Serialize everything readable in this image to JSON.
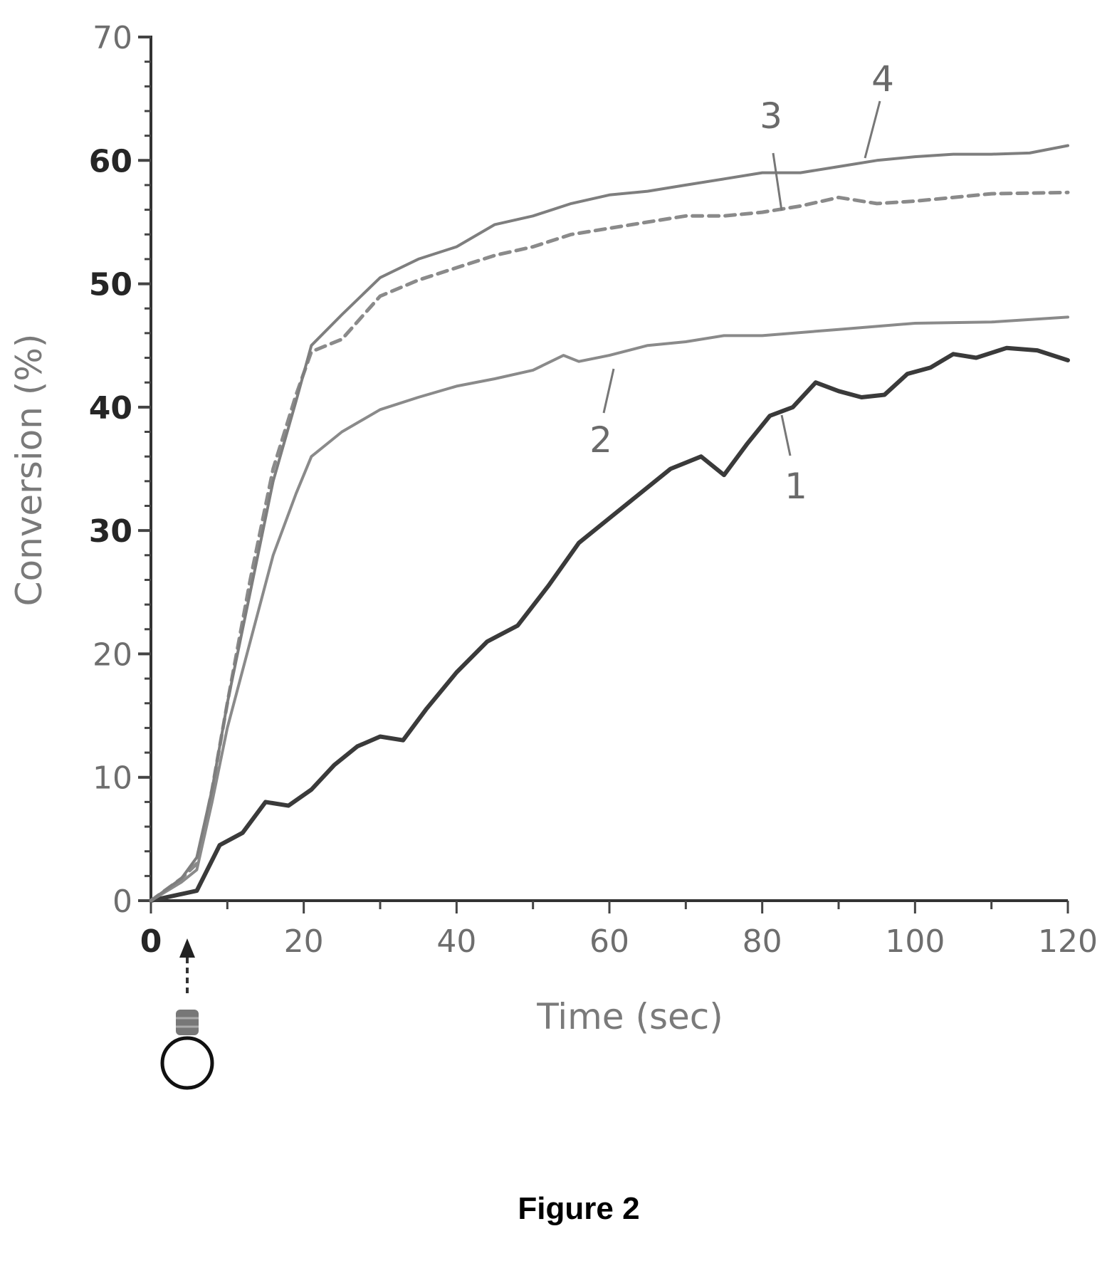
{
  "figure_caption": "Figure 2",
  "chart_data": {
    "type": "line",
    "title": "",
    "xlabel": "Time (sec)",
    "ylabel": "Conversion (%)",
    "xlim": [
      0,
      120
    ],
    "ylim": [
      0,
      70
    ],
    "x_ticks": [
      "0",
      "20",
      "40",
      "60",
      "80",
      "100",
      "120"
    ],
    "y_ticks": [
      "0",
      "10",
      "20",
      "30",
      "40",
      "50",
      "60",
      "70"
    ],
    "grid": false,
    "legend": "none (curves labeled directly 1–4)",
    "annotation": "light-source icon with arrow marking exposure start near t = 5 s",
    "series": [
      {
        "name": "1",
        "style": "solid-thick-dark",
        "color": "#3a3a3a",
        "points": [
          [
            0,
            0
          ],
          [
            6,
            0.8
          ],
          [
            9,
            4.5
          ],
          [
            12,
            5.5
          ],
          [
            15,
            8
          ],
          [
            18,
            7.7
          ],
          [
            21,
            9
          ],
          [
            24,
            11
          ],
          [
            27,
            12.5
          ],
          [
            30,
            13.3
          ],
          [
            33,
            13
          ],
          [
            36,
            15.5
          ],
          [
            40,
            18.5
          ],
          [
            44,
            21
          ],
          [
            48,
            22.3
          ],
          [
            52,
            25.5
          ],
          [
            56,
            29
          ],
          [
            60,
            31
          ],
          [
            64,
            33
          ],
          [
            68,
            35
          ],
          [
            72,
            36
          ],
          [
            75,
            34.5
          ],
          [
            78,
            37
          ],
          [
            81,
            39.3
          ],
          [
            84,
            40
          ],
          [
            87,
            42
          ],
          [
            90,
            41.3
          ],
          [
            93,
            40.8
          ],
          [
            96,
            41
          ],
          [
            99,
            42.7
          ],
          [
            102,
            43.2
          ],
          [
            105,
            44.3
          ],
          [
            108,
            44
          ],
          [
            112,
            44.8
          ],
          [
            116,
            44.6
          ],
          [
            120,
            43.8
          ]
        ]
      },
      {
        "name": "2",
        "style": "solid-gray",
        "color": "#8a8a8a",
        "points": [
          [
            0,
            0
          ],
          [
            4,
            1.5
          ],
          [
            6,
            2.5
          ],
          [
            8,
            8
          ],
          [
            10,
            14
          ],
          [
            13,
            21
          ],
          [
            16,
            28
          ],
          [
            19,
            33
          ],
          [
            21,
            36
          ],
          [
            25,
            38
          ],
          [
            30,
            39.8
          ],
          [
            35,
            40.8
          ],
          [
            40,
            41.7
          ],
          [
            45,
            42.3
          ],
          [
            50,
            43
          ],
          [
            54,
            44.2
          ],
          [
            56,
            43.7
          ],
          [
            60,
            44.2
          ],
          [
            65,
            45
          ],
          [
            70,
            45.3
          ],
          [
            75,
            45.8
          ],
          [
            80,
            45.8
          ],
          [
            90,
            46.3
          ],
          [
            100,
            46.8
          ],
          [
            110,
            46.9
          ],
          [
            120,
            47.3
          ]
        ]
      },
      {
        "name": "3",
        "style": "dashed-gray",
        "color": "#8a8a8a",
        "points": [
          [
            0,
            0
          ],
          [
            4,
            1.8
          ],
          [
            6,
            3
          ],
          [
            8,
            9
          ],
          [
            10,
            16
          ],
          [
            13,
            26
          ],
          [
            16,
            35
          ],
          [
            19,
            41
          ],
          [
            21,
            44.5
          ],
          [
            25,
            45.5
          ],
          [
            30,
            49
          ],
          [
            35,
            50.3
          ],
          [
            40,
            51.3
          ],
          [
            45,
            52.3
          ],
          [
            50,
            53
          ],
          [
            55,
            54
          ],
          [
            60,
            54.5
          ],
          [
            65,
            55
          ],
          [
            70,
            55.5
          ],
          [
            75,
            55.5
          ],
          [
            80,
            55.8
          ],
          [
            85,
            56.3
          ],
          [
            90,
            57
          ],
          [
            95,
            56.5
          ],
          [
            100,
            56.7
          ],
          [
            110,
            57.3
          ],
          [
            120,
            57.4
          ]
        ]
      },
      {
        "name": "4",
        "style": "solid-gray",
        "color": "#7e7e7e",
        "points": [
          [
            0,
            0
          ],
          [
            4,
            1.8
          ],
          [
            6,
            3.5
          ],
          [
            8,
            9
          ],
          [
            10,
            16
          ],
          [
            13,
            25
          ],
          [
            16,
            34
          ],
          [
            19,
            40.5
          ],
          [
            21,
            45
          ],
          [
            25,
            47.5
          ],
          [
            30,
            50.5
          ],
          [
            35,
            52
          ],
          [
            40,
            53
          ],
          [
            45,
            54.8
          ],
          [
            50,
            55.5
          ],
          [
            55,
            56.5
          ],
          [
            60,
            57.2
          ],
          [
            65,
            57.5
          ],
          [
            70,
            58
          ],
          [
            75,
            58.5
          ],
          [
            80,
            59
          ],
          [
            85,
            59
          ],
          [
            90,
            59.5
          ],
          [
            95,
            60
          ],
          [
            100,
            60.3
          ],
          [
            105,
            60.5
          ],
          [
            110,
            60.5
          ],
          [
            115,
            60.6
          ],
          [
            120,
            61.2
          ]
        ]
      }
    ],
    "curve_labels": [
      {
        "text": "1",
        "series": "1"
      },
      {
        "text": "2",
        "series": "2"
      },
      {
        "text": "3",
        "series": "3"
      },
      {
        "text": "4",
        "series": "4"
      }
    ]
  }
}
